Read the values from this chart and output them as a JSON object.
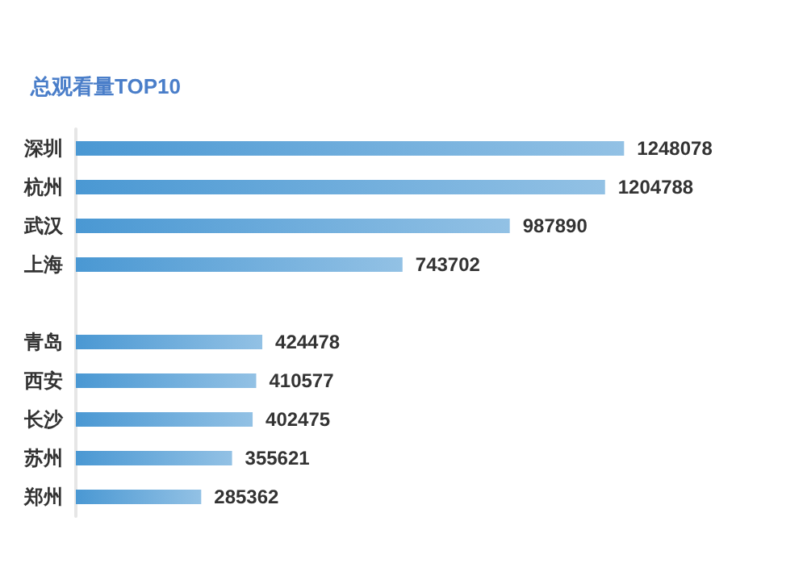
{
  "chart_data": {
    "type": "bar",
    "orientation": "horizontal",
    "title": "总观看量TOP10",
    "categories": [
      "深圳",
      "杭州",
      "武汉",
      "上海",
      null,
      "青岛",
      "西安",
      "长沙",
      "苏州",
      "郑州"
    ],
    "values": [
      1248078,
      1204788,
      987890,
      743702,
      null,
      424478,
      410577,
      402475,
      355621,
      285362
    ],
    "color": "#4a98d3",
    "data_labels": true
  }
}
